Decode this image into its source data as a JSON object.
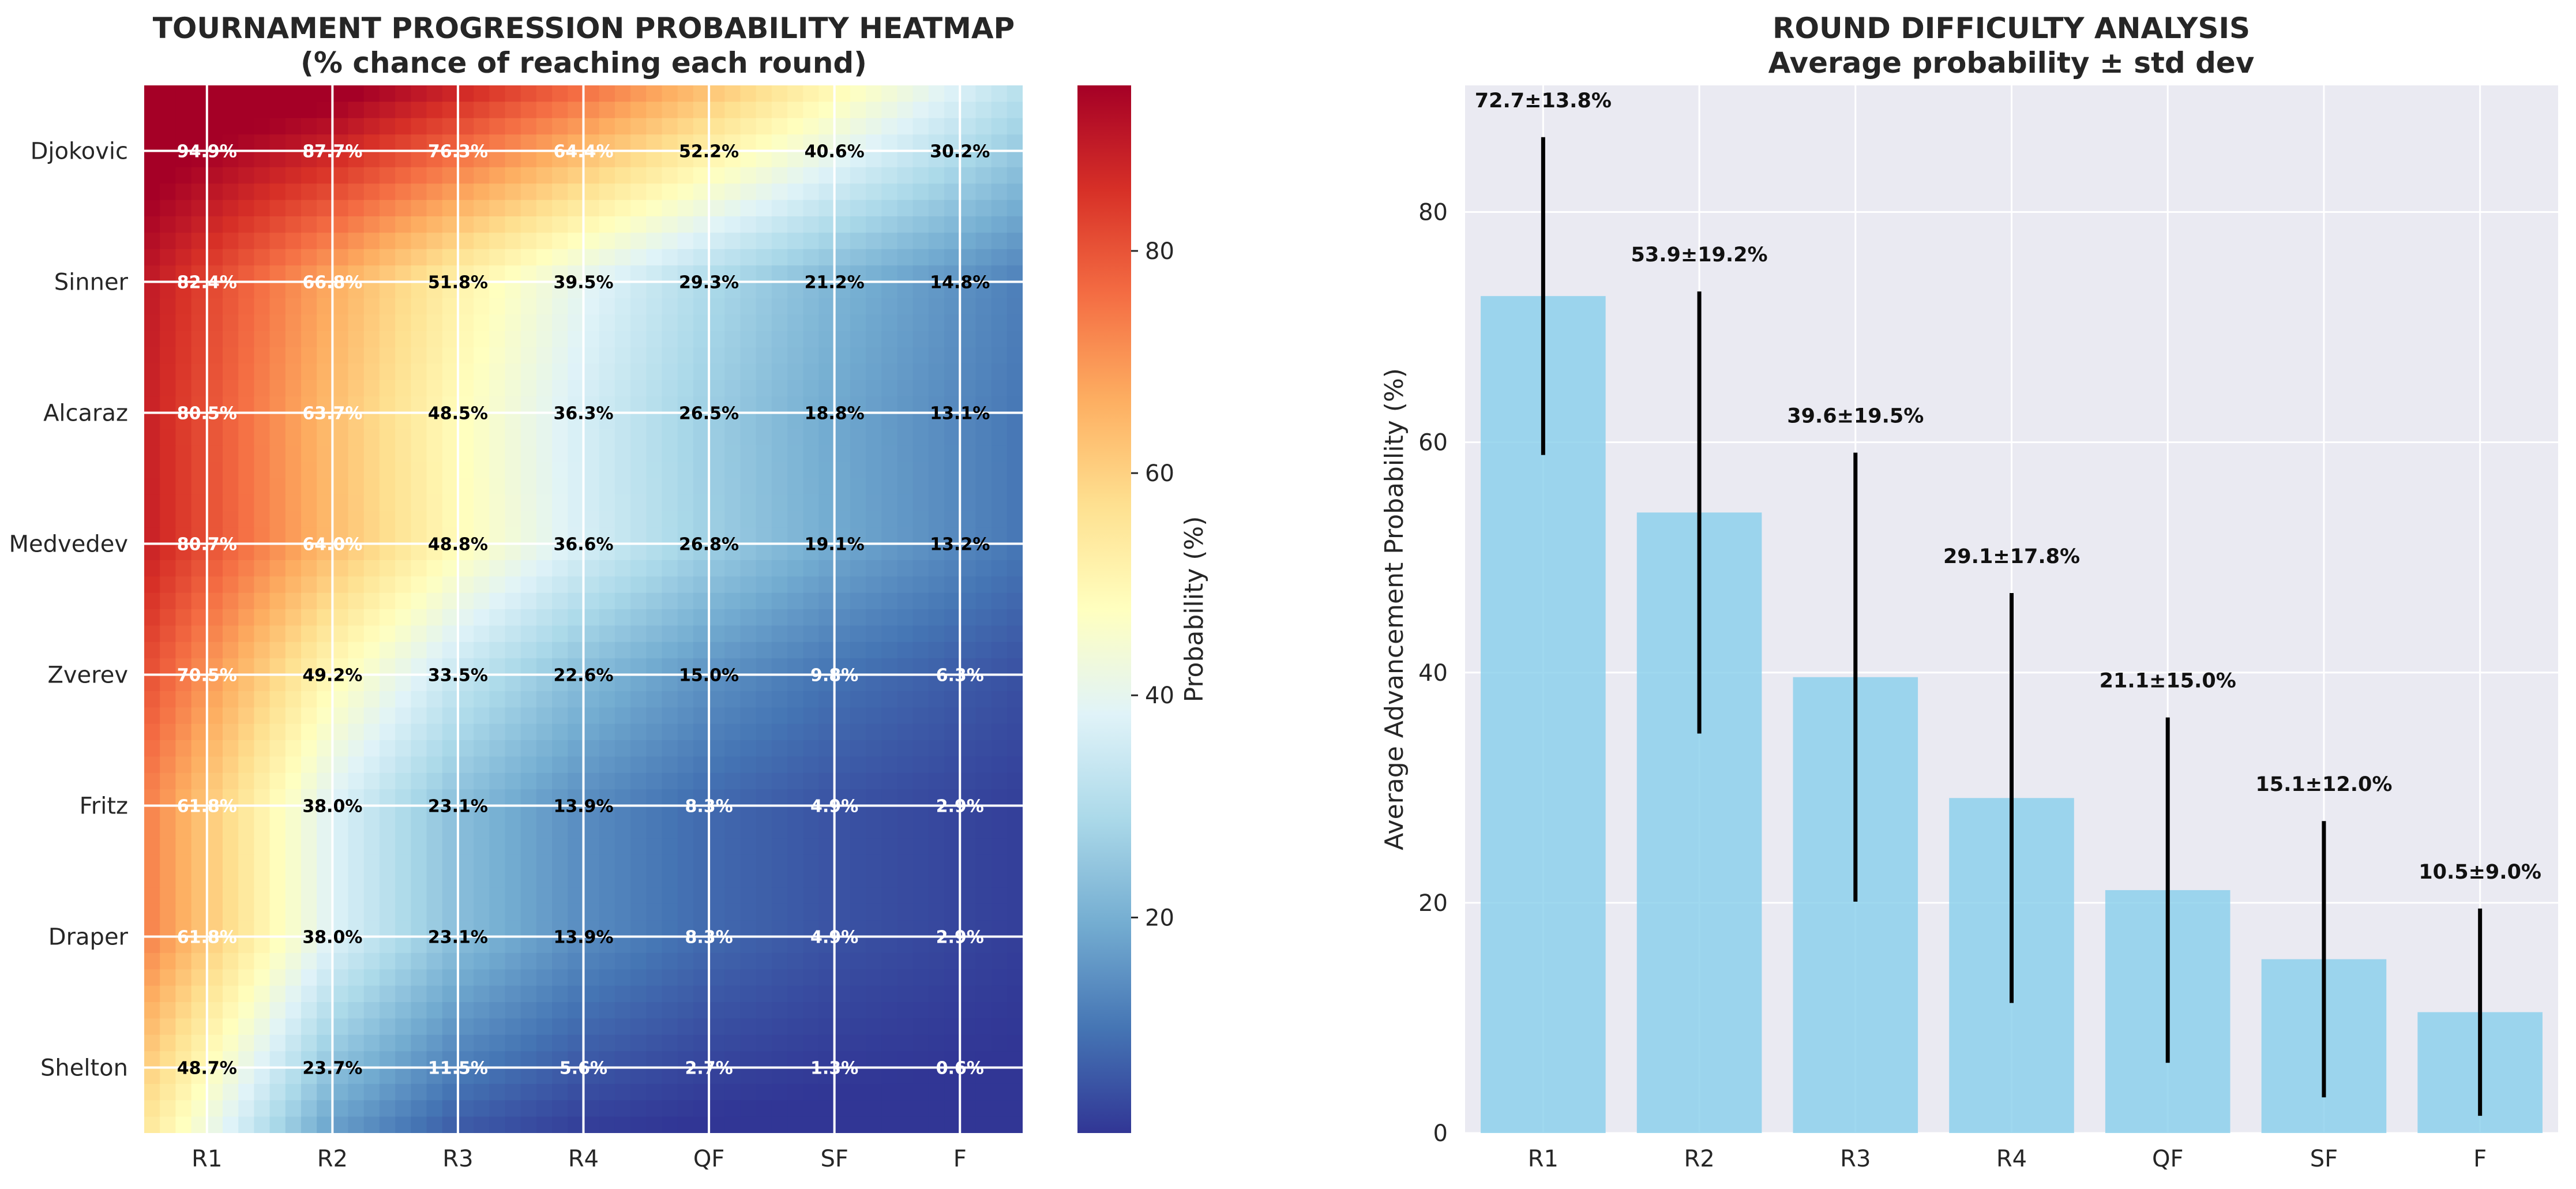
{
  "chart_data": [
    {
      "type": "heatmap",
      "title": "TOURNAMENT PROGRESSION PROBABILITY HEATMAP",
      "subtitle": "(% chance of reaching each round)",
      "rows": [
        "Djokovic",
        "Sinner",
        "Alcaraz",
        "Medvedev",
        "Zverev",
        "Fritz",
        "Draper",
        "Shelton"
      ],
      "columns": [
        "R1",
        "R2",
        "R3",
        "R4",
        "QF",
        "SF",
        "F"
      ],
      "values": [
        [
          94.9,
          87.7,
          76.3,
          64.4,
          52.2,
          40.6,
          30.2
        ],
        [
          82.4,
          66.8,
          51.8,
          39.5,
          29.3,
          21.2,
          14.8
        ],
        [
          80.5,
          63.7,
          48.5,
          36.3,
          26.5,
          18.8,
          13.1
        ],
        [
          80.7,
          64.0,
          48.8,
          36.6,
          26.8,
          19.1,
          13.2
        ],
        [
          70.5,
          49.2,
          33.5,
          22.6,
          15.0,
          9.8,
          6.3
        ],
        [
          61.8,
          38.0,
          23.1,
          13.9,
          8.3,
          4.9,
          2.9
        ],
        [
          61.8,
          38.0,
          23.1,
          13.9,
          8.3,
          4.9,
          2.9
        ],
        [
          48.7,
          23.7,
          11.5,
          5.6,
          2.7,
          1.3,
          0.6
        ]
      ],
      "value_labels": [
        [
          "94.9%",
          "87.7%",
          "76.3%",
          "64.4%",
          "52.2%",
          "40.6%",
          "30.2%"
        ],
        [
          "82.4%",
          "66.8%",
          "51.8%",
          "39.5%",
          "29.3%",
          "21.2%",
          "14.8%"
        ],
        [
          "80.5%",
          "63.7%",
          "48.5%",
          "36.3%",
          "26.5%",
          "18.8%",
          "13.1%"
        ],
        [
          "80.7%",
          "64.0%",
          "48.8%",
          "36.6%",
          "26.8%",
          "19.1%",
          "13.2%"
        ],
        [
          "70.5%",
          "49.2%",
          "33.5%",
          "22.6%",
          "15.0%",
          "9.8%",
          "6.3%"
        ],
        [
          "61.8%",
          "38.0%",
          "23.1%",
          "13.9%",
          "8.3%",
          "4.9%",
          "2.9%"
        ],
        [
          "61.8%",
          "38.0%",
          "23.1%",
          "13.9%",
          "8.3%",
          "4.9%",
          "2.9%"
        ],
        [
          "48.7%",
          "23.7%",
          "11.5%",
          "5.6%",
          "2.7%",
          "1.3%",
          "0.6%"
        ]
      ],
      "colormap": "RdYlBu_r",
      "colorbar": {
        "label": "Probability (%)",
        "range": [
          0.6,
          94.9
        ],
        "ticks": [
          20,
          40,
          60,
          80
        ],
        "tick_labels": [
          "20",
          "40",
          "60",
          "80"
        ]
      },
      "grid": true
    },
    {
      "type": "bar",
      "title": "ROUND DIFFICULTY ANALYSIS",
      "subtitle": "Average probability ± std dev",
      "categories": [
        "R1",
        "R2",
        "R3",
        "R4",
        "QF",
        "SF",
        "F"
      ],
      "values": [
        72.7,
        53.9,
        39.6,
        29.1,
        21.1,
        15.1,
        10.5
      ],
      "errors": [
        13.8,
        19.2,
        19.5,
        17.8,
        15.0,
        12.0,
        9.0
      ],
      "bar_labels": [
        "72.7±13.8%",
        "53.9±19.2%",
        "39.6±19.5%",
        "29.1±17.8%",
        "21.1±15.0%",
        "15.1±12.0%",
        "10.5±9.0%"
      ],
      "xlabel": "",
      "ylabel": "Average Advancement Probability (%)",
      "ylim": [
        0,
        91
      ],
      "yticks": [
        0,
        20,
        40,
        60,
        80
      ],
      "ytick_labels": [
        "0",
        "20",
        "40",
        "60",
        "80"
      ],
      "bar_color": "#87ceeb",
      "error_color": "#000000",
      "background": "#eaeaf2",
      "grid": true
    }
  ]
}
